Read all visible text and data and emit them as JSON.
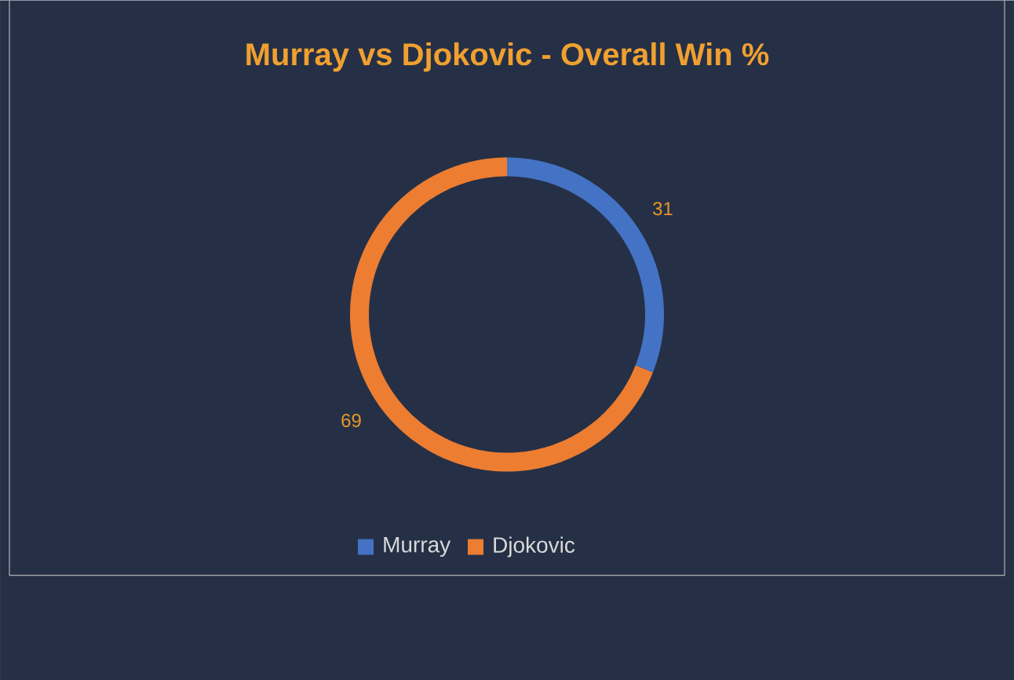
{
  "chart_data": {
    "type": "donut",
    "title": "Murray vs Djokovic - Overall Win %",
    "categories": [
      "Murray",
      "Djokovic"
    ],
    "values": [
      31,
      69
    ],
    "colors": [
      "#4472c4",
      "#ed7d31"
    ],
    "data_labels": true,
    "legend": "bottom"
  }
}
